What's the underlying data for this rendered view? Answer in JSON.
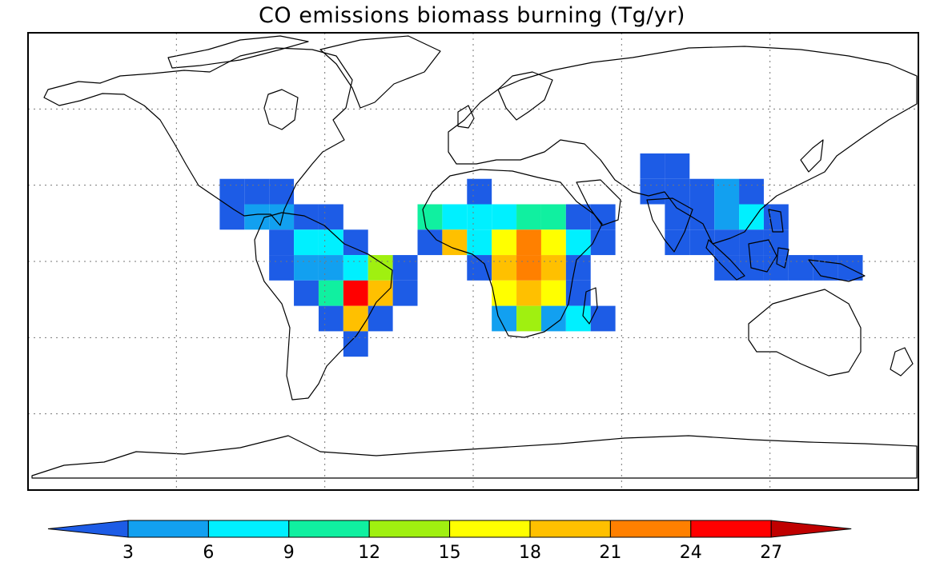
{
  "title": "CO emissions biomass burning (Tg/yr)",
  "colorbar": {
    "ticks": [
      "3",
      "6",
      "9",
      "12",
      "15",
      "18",
      "21",
      "24",
      "27"
    ],
    "under_color": "#1d5ce6",
    "over_color": "#c00000",
    "colors": [
      "#12a0f0",
      "#00f0ff",
      "#10f0a0",
      "#a0f010",
      "#ffff00",
      "#ffc000",
      "#ff8000",
      "#ff0000"
    ]
  },
  "chart_data": {
    "type": "heatmap",
    "title": "CO emissions biomass burning (Tg/yr)",
    "grid": true,
    "levels": [
      3,
      6,
      9,
      12,
      15,
      18,
      21,
      24,
      27
    ],
    "extend": "both",
    "cells": [
      {
        "lon": -97.5,
        "lat": 27.5,
        "value": 2
      },
      {
        "lon": -87.5,
        "lat": 27.5,
        "value": 2
      },
      {
        "lon": -77.5,
        "lat": 27.5,
        "value": 2
      },
      {
        "lon": -97.5,
        "lat": 17.5,
        "value": 2
      },
      {
        "lon": -87.5,
        "lat": 17.5,
        "value": 4
      },
      {
        "lon": -77.5,
        "lat": 17.5,
        "value": 4
      },
      {
        "lon": -67.5,
        "lat": 17.5,
        "value": 2
      },
      {
        "lon": -57.5,
        "lat": 17.5,
        "value": 2
      },
      {
        "lon": -77.5,
        "lat": 7.5,
        "value": 2
      },
      {
        "lon": -67.5,
        "lat": 7.5,
        "value": 7
      },
      {
        "lon": -57.5,
        "lat": 7.5,
        "value": 7
      },
      {
        "lon": -47.5,
        "lat": 7.5,
        "value": 2
      },
      {
        "lon": -77.5,
        "lat": -2.5,
        "value": 2
      },
      {
        "lon": -67.5,
        "lat": -2.5,
        "value": 4
      },
      {
        "lon": -57.5,
        "lat": -2.5,
        "value": 4
      },
      {
        "lon": -47.5,
        "lat": -2.5,
        "value": 7
      },
      {
        "lon": -37.5,
        "lat": -2.5,
        "value": 13
      },
      {
        "lon": -27.5,
        "lat": -2.5,
        "value": 2
      },
      {
        "lon": -67.5,
        "lat": -12.5,
        "value": 2
      },
      {
        "lon": -57.5,
        "lat": -12.5,
        "value": 10
      },
      {
        "lon": -47.5,
        "lat": -12.5,
        "value": 25
      },
      {
        "lon": -37.5,
        "lat": -12.5,
        "value": 19
      },
      {
        "lon": -27.5,
        "lat": -12.5,
        "value": 2
      },
      {
        "lon": -57.5,
        "lat": -22.5,
        "value": 2
      },
      {
        "lon": -47.5,
        "lat": -22.5,
        "value": 19
      },
      {
        "lon": -37.5,
        "lat": -22.5,
        "value": 2
      },
      {
        "lon": -47.5,
        "lat": -32.5,
        "value": 2
      },
      {
        "lon": 2.5,
        "lat": 27.5,
        "value": 2
      },
      {
        "lon": -17.5,
        "lat": 17.5,
        "value": 10
      },
      {
        "lon": -7.5,
        "lat": 17.5,
        "value": 7
      },
      {
        "lon": 2.5,
        "lat": 17.5,
        "value": 7
      },
      {
        "lon": 12.5,
        "lat": 17.5,
        "value": 7
      },
      {
        "lon": 22.5,
        "lat": 17.5,
        "value": 10
      },
      {
        "lon": 32.5,
        "lat": 17.5,
        "value": 10
      },
      {
        "lon": 42.5,
        "lat": 17.5,
        "value": 2
      },
      {
        "lon": 52.5,
        "lat": 17.5,
        "value": 2
      },
      {
        "lon": -17.5,
        "lat": 7.5,
        "value": 2
      },
      {
        "lon": -7.5,
        "lat": 7.5,
        "value": 19
      },
      {
        "lon": 2.5,
        "lat": 7.5,
        "value": 7
      },
      {
        "lon": 12.5,
        "lat": 7.5,
        "value": 16
      },
      {
        "lon": 22.5,
        "lat": 7.5,
        "value": 22
      },
      {
        "lon": 32.5,
        "lat": 7.5,
        "value": 16
      },
      {
        "lon": 42.5,
        "lat": 7.5,
        "value": 7
      },
      {
        "lon": 52.5,
        "lat": 7.5,
        "value": 2
      },
      {
        "lon": 2.5,
        "lat": -2.5,
        "value": 2
      },
      {
        "lon": 12.5,
        "lat": -2.5,
        "value": 19
      },
      {
        "lon": 22.5,
        "lat": -2.5,
        "value": 22
      },
      {
        "lon": 32.5,
        "lat": -2.5,
        "value": 19
      },
      {
        "lon": 42.5,
        "lat": -2.5,
        "value": 2
      },
      {
        "lon": 12.5,
        "lat": -12.5,
        "value": 16
      },
      {
        "lon": 22.5,
        "lat": -12.5,
        "value": 19
      },
      {
        "lon": 32.5,
        "lat": -12.5,
        "value": 16
      },
      {
        "lon": 42.5,
        "lat": -12.5,
        "value": 2
      },
      {
        "lon": 12.5,
        "lat": -22.5,
        "value": 4
      },
      {
        "lon": 22.5,
        "lat": -22.5,
        "value": 13
      },
      {
        "lon": 32.5,
        "lat": -22.5,
        "value": 4
      },
      {
        "lon": 42.5,
        "lat": -22.5,
        "value": 7
      },
      {
        "lon": 52.5,
        "lat": -22.5,
        "value": 2
      },
      {
        "lon": 72.5,
        "lat": 37.5,
        "value": 2
      },
      {
        "lon": 82.5,
        "lat": 37.5,
        "value": 2
      },
      {
        "lon": 72.5,
        "lat": 27.5,
        "value": 2
      },
      {
        "lon": 82.5,
        "lat": 27.5,
        "value": 2
      },
      {
        "lon": 92.5,
        "lat": 27.5,
        "value": 2
      },
      {
        "lon": 102.5,
        "lat": 27.5,
        "value": 4
      },
      {
        "lon": 112.5,
        "lat": 27.5,
        "value": 2
      },
      {
        "lon": 82.5,
        "lat": 17.5,
        "value": 2
      },
      {
        "lon": 92.5,
        "lat": 17.5,
        "value": 2
      },
      {
        "lon": 102.5,
        "lat": 17.5,
        "value": 4
      },
      {
        "lon": 112.5,
        "lat": 17.5,
        "value": 7
      },
      {
        "lon": 122.5,
        "lat": 17.5,
        "value": 2
      },
      {
        "lon": 82.5,
        "lat": 7.5,
        "value": 2
      },
      {
        "lon": 92.5,
        "lat": 7.5,
        "value": 2
      },
      {
        "lon": 102.5,
        "lat": 7.5,
        "value": 2
      },
      {
        "lon": 112.5,
        "lat": 7.5,
        "value": 2
      },
      {
        "lon": 122.5,
        "lat": 7.5,
        "value": 2
      },
      {
        "lon": 102.5,
        "lat": -2.5,
        "value": 2
      },
      {
        "lon": 112.5,
        "lat": -2.5,
        "value": 2
      },
      {
        "lon": 122.5,
        "lat": -2.5,
        "value": 2
      },
      {
        "lon": 132.5,
        "lat": -2.5,
        "value": 2
      },
      {
        "lon": 142.5,
        "lat": -2.5,
        "value": 2
      },
      {
        "lon": 152.5,
        "lat": -2.5,
        "value": 2
      }
    ]
  }
}
